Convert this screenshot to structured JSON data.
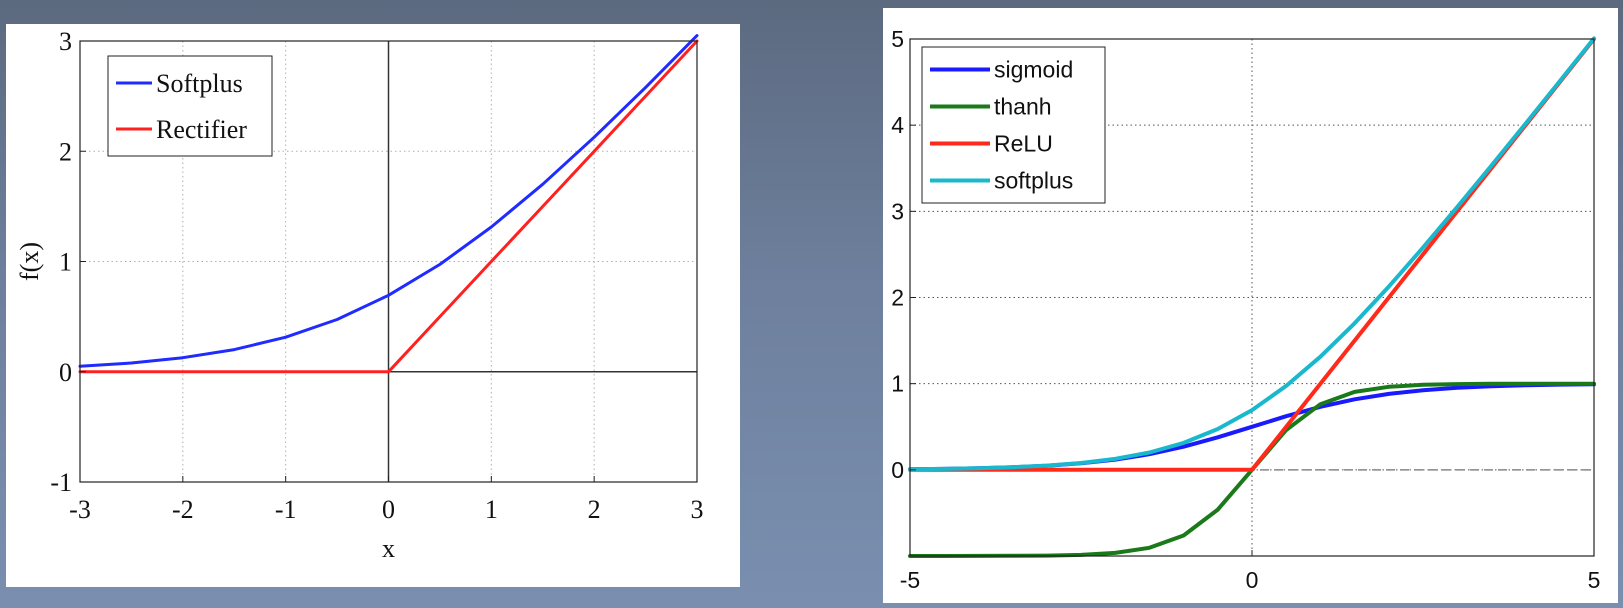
{
  "chart_data": [
    {
      "type": "line",
      "title": "",
      "xlabel": "x",
      "ylabel": "f(x)",
      "xlim": [
        -3,
        3
      ],
      "ylim": [
        -1,
        3
      ],
      "xticks": [
        -3,
        -2,
        -1,
        0,
        1,
        2,
        3
      ],
      "yticks": [
        -1,
        0,
        1,
        2,
        3
      ],
      "xtick_labels": [
        "-3",
        "-2",
        "-1",
        "0",
        "1",
        "2",
        "3"
      ],
      "ytick_labels": [
        "-1",
        "0",
        "1",
        "2",
        "3"
      ],
      "grid": true,
      "legend_position": "top-left",
      "x": [
        -3,
        -2.5,
        -2,
        -1.5,
        -1,
        -0.5,
        0,
        0.5,
        1,
        1.5,
        2,
        2.5,
        3
      ],
      "series": [
        {
          "name": "Softplus",
          "color": "#1f2bff",
          "values": [
            0.049,
            0.079,
            0.127,
            0.201,
            0.313,
            0.474,
            0.693,
            0.974,
            1.313,
            1.701,
            2.127,
            2.579,
            3.049
          ]
        },
        {
          "name": "Rectifier",
          "color": "#ff2020",
          "values": [
            0,
            0,
            0,
            0,
            0,
            0,
            0,
            0.5,
            1,
            1.5,
            2,
            2.5,
            3
          ]
        }
      ]
    },
    {
      "type": "line",
      "title": "",
      "xlabel": "",
      "ylabel": "",
      "xlim": [
        -5,
        5
      ],
      "ylim": [
        -1,
        5
      ],
      "xticks": [
        -5,
        0,
        5
      ],
      "yticks": [
        0,
        1,
        2,
        3,
        4,
        5
      ],
      "xtick_labels": [
        "-5",
        "0",
        "5"
      ],
      "ytick_labels": [
        "0",
        "1",
        "2",
        "3",
        "4",
        "5"
      ],
      "grid": true,
      "legend_position": "top-left",
      "x": [
        -5,
        -4.5,
        -4,
        -3.5,
        -3,
        -2.5,
        -2,
        -1.5,
        -1,
        -0.5,
        0,
        0.5,
        1,
        1.5,
        2,
        2.5,
        3,
        3.5,
        4,
        4.5,
        5
      ],
      "series": [
        {
          "name": "sigmoid",
          "color": "#1a1aff",
          "values": [
            0.007,
            0.011,
            0.018,
            0.029,
            0.047,
            0.076,
            0.119,
            0.182,
            0.269,
            0.378,
            0.5,
            0.622,
            0.731,
            0.818,
            0.881,
            0.924,
            0.953,
            0.971,
            0.982,
            0.989,
            0.993
          ]
        },
        {
          "name": "thanh",
          "color": "#1a7a1a",
          "values": [
            -1,
            -1,
            -0.999,
            -0.998,
            -0.995,
            -0.987,
            -0.964,
            -0.905,
            -0.762,
            -0.462,
            0,
            0.462,
            0.762,
            0.905,
            0.964,
            0.987,
            0.995,
            0.998,
            0.999,
            1,
            1
          ]
        },
        {
          "name": "ReLU",
          "color": "#ff2a1a",
          "values": [
            0,
            0,
            0,
            0,
            0,
            0,
            0,
            0,
            0,
            0,
            0,
            0.5,
            1,
            1.5,
            2,
            2.5,
            3,
            3.5,
            4,
            4.5,
            5
          ]
        },
        {
          "name": "softplus",
          "color": "#1ab8cc",
          "values": [
            0.007,
            0.011,
            0.018,
            0.03,
            0.049,
            0.079,
            0.127,
            0.201,
            0.313,
            0.474,
            0.693,
            0.974,
            1.313,
            1.701,
            2.127,
            2.579,
            3.049,
            3.53,
            4.018,
            4.511,
            5.007
          ]
        }
      ]
    }
  ]
}
